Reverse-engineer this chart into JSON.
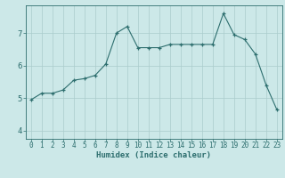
{
  "x": [
    0,
    1,
    2,
    3,
    4,
    5,
    6,
    7,
    8,
    9,
    10,
    11,
    12,
    13,
    14,
    15,
    16,
    17,
    18,
    19,
    20,
    21,
    22,
    23
  ],
  "y": [
    4.95,
    5.15,
    5.15,
    5.25,
    5.55,
    5.6,
    5.7,
    6.05,
    7.0,
    7.2,
    6.55,
    6.55,
    6.55,
    6.65,
    6.65,
    6.65,
    6.65,
    6.65,
    7.6,
    6.95,
    6.8,
    6.35,
    5.4,
    4.65
  ],
  "line_color": "#2d6e6e",
  "marker": "+",
  "marker_size": 3,
  "marker_edge_width": 0.9,
  "line_width": 0.8,
  "bg_color": "#cce8e8",
  "grid_color": "#aacccc",
  "xlabel": "Humidex (Indice chaleur)",
  "ylim": [
    3.75,
    7.85
  ],
  "xlim": [
    -0.5,
    23.5
  ],
  "yticks": [
    4,
    5,
    6,
    7
  ],
  "xticks": [
    0,
    1,
    2,
    3,
    4,
    5,
    6,
    7,
    8,
    9,
    10,
    11,
    12,
    13,
    14,
    15,
    16,
    17,
    18,
    19,
    20,
    21,
    22,
    23
  ],
  "xlabel_fontsize": 6.5,
  "ytick_fontsize": 6.5,
  "xtick_fontsize": 5.5
}
